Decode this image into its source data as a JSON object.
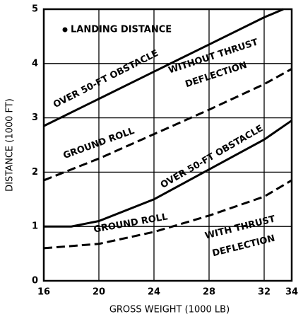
{
  "chart_data": {
    "type": "line",
    "title": "LANDING DISTANCE",
    "xlabel": "GROSS WEIGHT (1000 LB)",
    "ylabel": "DISTANCE (1000 FT)",
    "xlim": [
      16,
      34
    ],
    "xticks": [
      16,
      20,
      24,
      28,
      32,
      34
    ],
    "ylim": [
      0,
      5
    ],
    "yticks": [
      0,
      1,
      2,
      3,
      4,
      5
    ],
    "grid": true,
    "series": [
      {
        "name": "OVER 50-FT OBSTACLE",
        "color": "#000000",
        "dashed": false,
        "x": [
          16,
          20,
          24,
          28,
          32,
          33.4
        ],
        "values": [
          2.85,
          3.35,
          3.85,
          4.35,
          4.85,
          5.0
        ]
      },
      {
        "name": "GROUND ROLL",
        "color": "#000000",
        "dashed": true,
        "x": [
          16,
          20,
          24,
          28,
          32,
          34
        ],
        "values": [
          1.85,
          2.25,
          2.7,
          3.15,
          3.62,
          3.9
        ]
      },
      {
        "name": "OVER 50-FT OBSTACLE",
        "color": "#000000",
        "dashed": false,
        "x": [
          16,
          18,
          20,
          24,
          28,
          32,
          34
        ],
        "values": [
          1.0,
          1.0,
          1.1,
          1.5,
          2.05,
          2.6,
          2.95
        ]
      },
      {
        "name": "GROUND ROLL",
        "color": "#000000",
        "dashed": true,
        "x": [
          16,
          20,
          24,
          28,
          32,
          34
        ],
        "values": [
          0.6,
          0.68,
          0.9,
          1.2,
          1.55,
          1.85
        ]
      }
    ],
    "annotations": [
      [
        "WITHOUT THRUST",
        "DEFLECTION"
      ],
      [
        "WITH THRUST",
        "DEFLECTION"
      ]
    ]
  }
}
